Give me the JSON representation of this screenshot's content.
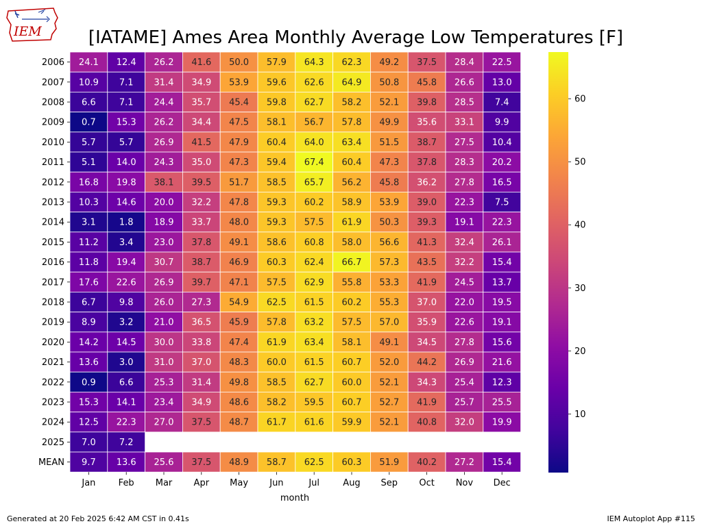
{
  "logo": {
    "text": "IEM",
    "color": "#c00000"
  },
  "footer": {
    "left": "Generated at 20 Feb 2025 6:42 AM CST in 0.41s",
    "right": "IEM Autoplot App #115"
  },
  "chart_data": {
    "type": "heatmap",
    "title": "[IATAME] Ames Area Monthly Average Low Temperatures [F]",
    "xlabel": "month",
    "ylabel": "",
    "colormap": "plasma",
    "color_range": [
      0.7,
      67.4
    ],
    "colorbar_ticks": [
      10,
      20,
      30,
      40,
      50,
      60
    ],
    "x": [
      "Jan",
      "Feb",
      "Mar",
      "Apr",
      "May",
      "Jun",
      "Jul",
      "Aug",
      "Sep",
      "Oct",
      "Nov",
      "Dec"
    ],
    "y": [
      "2006",
      "2007",
      "2008",
      "2009",
      "2010",
      "2011",
      "2012",
      "2013",
      "2014",
      "2015",
      "2016",
      "2017",
      "2018",
      "2019",
      "2020",
      "2021",
      "2022",
      "2023",
      "2024",
      "2025",
      "MEAN"
    ],
    "values": [
      [
        24.1,
        12.4,
        26.2,
        41.6,
        50.0,
        57.9,
        64.3,
        62.3,
        49.2,
        37.5,
        28.4,
        22.5
      ],
      [
        10.9,
        7.1,
        31.4,
        34.9,
        53.9,
        59.6,
        62.6,
        64.9,
        50.8,
        45.8,
        26.6,
        13.0
      ],
      [
        6.6,
        7.1,
        24.4,
        35.7,
        45.4,
        59.8,
        62.7,
        58.2,
        52.1,
        39.8,
        28.5,
        7.4
      ],
      [
        0.7,
        15.3,
        26.2,
        34.4,
        47.5,
        58.1,
        56.7,
        57.8,
        49.9,
        35.6,
        33.1,
        9.9
      ],
      [
        5.7,
        5.7,
        26.9,
        41.5,
        47.9,
        60.4,
        64.0,
        63.4,
        51.5,
        38.7,
        27.5,
        10.4
      ],
      [
        5.1,
        14.0,
        24.3,
        35.0,
        47.3,
        59.4,
        67.4,
        60.4,
        47.3,
        37.8,
        28.3,
        20.2
      ],
      [
        16.8,
        19.8,
        38.1,
        39.5,
        51.7,
        58.5,
        65.7,
        56.2,
        45.8,
        36.2,
        27.8,
        16.5
      ],
      [
        10.3,
        14.6,
        20.0,
        32.2,
        47.8,
        59.3,
        60.2,
        58.9,
        53.9,
        39.0,
        22.3,
        7.5
      ],
      [
        3.1,
        1.8,
        18.9,
        33.7,
        48.0,
        59.3,
        57.5,
        61.9,
        50.3,
        39.3,
        19.1,
        22.3
      ],
      [
        11.2,
        3.4,
        23.0,
        37.8,
        49.1,
        58.6,
        60.8,
        58.0,
        56.6,
        41.3,
        32.4,
        26.1
      ],
      [
        11.8,
        19.4,
        30.7,
        38.7,
        46.9,
        60.3,
        62.4,
        66.7,
        57.3,
        43.5,
        32.2,
        15.4
      ],
      [
        17.6,
        22.6,
        26.9,
        39.7,
        47.1,
        57.5,
        62.9,
        55.8,
        53.3,
        41.9,
        24.5,
        13.7
      ],
      [
        6.7,
        9.8,
        26.0,
        27.3,
        54.9,
        62.5,
        61.5,
        60.2,
        55.3,
        37.0,
        22.0,
        19.5
      ],
      [
        8.9,
        3.2,
        21.0,
        36.5,
        45.9,
        57.8,
        63.2,
        57.5,
        57.0,
        35.9,
        22.6,
        19.1
      ],
      [
        14.2,
        14.5,
        30.0,
        33.8,
        47.4,
        61.9,
        63.4,
        58.1,
        49.1,
        34.5,
        27.8,
        15.6
      ],
      [
        13.6,
        3.0,
        31.0,
        37.0,
        48.3,
        60.0,
        61.5,
        60.7,
        52.0,
        44.2,
        26.9,
        21.6
      ],
      [
        0.9,
        6.6,
        25.3,
        31.4,
        49.8,
        58.5,
        62.7,
        60.0,
        52.1,
        34.3,
        25.4,
        12.3
      ],
      [
        15.3,
        14.1,
        23.4,
        34.9,
        48.6,
        58.2,
        59.5,
        60.7,
        52.7,
        41.9,
        25.7,
        25.5
      ],
      [
        12.5,
        22.3,
        27.0,
        37.5,
        48.7,
        61.7,
        61.6,
        59.9,
        52.1,
        40.8,
        32.0,
        19.9
      ],
      [
        7.0,
        7.2,
        null,
        null,
        null,
        null,
        null,
        null,
        null,
        null,
        null,
        null
      ],
      [
        9.7,
        13.6,
        25.6,
        37.5,
        48.9,
        58.7,
        62.5,
        60.3,
        51.9,
        40.2,
        27.2,
        15.4
      ]
    ]
  }
}
